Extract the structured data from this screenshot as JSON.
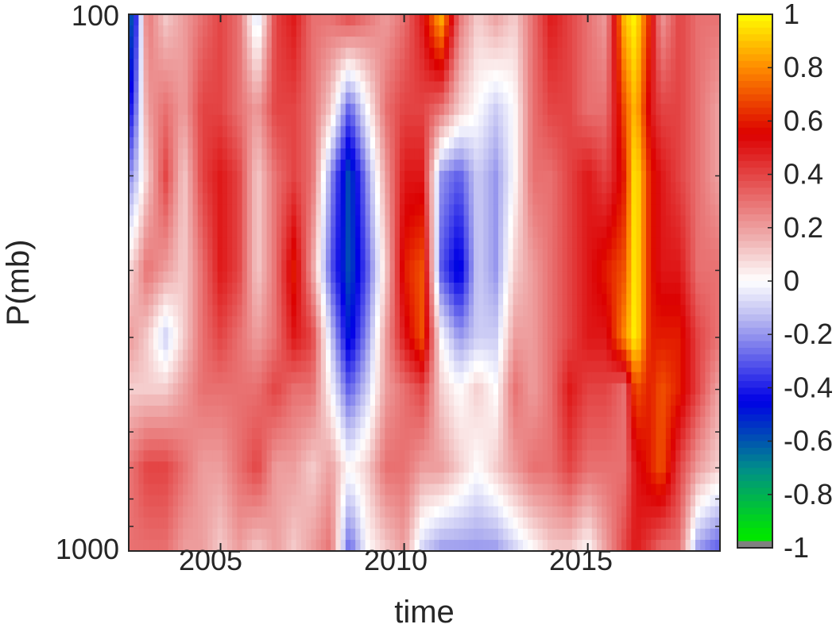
{
  "chart_data": {
    "type": "heatmap",
    "title": "",
    "xlabel": "time",
    "ylabel": "P(mb)",
    "x_range": [
      2002.5,
      2018.6
    ],
    "y_range": [
      100,
      1000
    ],
    "y_scale": "log",
    "y_direction": "reverse",
    "x_ticks": [
      2005,
      2010,
      2015
    ],
    "x_tick_labels": [
      "2005",
      "2010",
      "2015"
    ],
    "y_ticks": [
      100,
      1000
    ],
    "y_tick_labels": [
      "100",
      "1000"
    ],
    "grid": false,
    "colorbar": {
      "range": [
        -1,
        1
      ],
      "ticks": [
        1,
        0.8,
        0.6,
        0.4,
        0.2,
        0,
        -0.2,
        -0.4,
        -0.6,
        -0.8,
        -1
      ],
      "tick_labels": [
        "1",
        "0.8",
        "0.6",
        "0.4",
        "0.2",
        "0",
        "-0.2",
        "-0.4",
        "-0.6",
        "-0.8",
        "-1"
      ],
      "colors": [
        "#808080",
        "#00e600",
        "#008c8c",
        "#0000e6",
        "#b4b4f0",
        "#ffffff",
        "#f0b4b4",
        "#dc0000",
        "#ff8c00",
        "#ffff00"
      ]
    },
    "columns": [
      {
        "x": 2002.6,
        "values": [
          -0.6,
          -0.4,
          -0.2,
          0.1,
          0.2,
          0.1,
          0.3,
          0.3
        ]
      },
      {
        "x": 2003.0,
        "values": [
          0.3,
          0.2,
          0.1,
          0.3,
          0.1,
          0.1,
          0.4,
          0.3
        ]
      },
      {
        "x": 2003.5,
        "values": [
          0.1,
          0.3,
          0.4,
          0.2,
          -0.1,
          0.1,
          0.4,
          0.3
        ]
      },
      {
        "x": 2004.0,
        "values": [
          0.2,
          0.2,
          0.1,
          0.1,
          0.1,
          0.2,
          0.3,
          0.2
        ]
      },
      {
        "x": 2004.5,
        "values": [
          0.3,
          0.4,
          0.4,
          0.3,
          0.3,
          0.3,
          0.2,
          0.2
        ]
      },
      {
        "x": 2005.0,
        "values": [
          0.4,
          0.4,
          0.5,
          0.5,
          0.4,
          0.3,
          0.2,
          0.1
        ]
      },
      {
        "x": 2005.5,
        "values": [
          0.3,
          0.3,
          0.4,
          0.4,
          0.3,
          0.3,
          0.3,
          0.2
        ]
      },
      {
        "x": 2006.0,
        "values": [
          -0.1,
          0.2,
          0.1,
          0.1,
          0.2,
          0.3,
          0.4,
          0.1
        ]
      },
      {
        "x": 2006.5,
        "values": [
          0.4,
          0.4,
          0.3,
          0.3,
          0.3,
          0.4,
          0.2,
          0.2
        ]
      },
      {
        "x": 2007.0,
        "values": [
          0.5,
          0.4,
          0.4,
          0.6,
          0.5,
          0.3,
          0.2,
          0.1
        ]
      },
      {
        "x": 2007.5,
        "values": [
          0.3,
          0.3,
          0.3,
          0.2,
          0.4,
          0.3,
          0.1,
          0.2
        ]
      },
      {
        "x": 2008.0,
        "values": [
          0.3,
          0.1,
          -0.2,
          -0.3,
          -0.1,
          0.0,
          0.2,
          0.3
        ]
      },
      {
        "x": 2008.5,
        "values": [
          0.4,
          -0.3,
          -0.6,
          -0.6,
          -0.5,
          -0.3,
          0.0,
          -0.3
        ]
      },
      {
        "x": 2009.0,
        "values": [
          0.3,
          0.0,
          -0.2,
          -0.3,
          -0.2,
          -0.1,
          0.1,
          0.0
        ]
      },
      {
        "x": 2009.5,
        "values": [
          0.2,
          0.3,
          0.2,
          0.1,
          0.2,
          0.2,
          0.3,
          0.1
        ]
      },
      {
        "x": 2010.0,
        "values": [
          0.3,
          0.4,
          0.5,
          0.6,
          0.5,
          0.3,
          0.3,
          0.2
        ]
      },
      {
        "x": 2010.5,
        "values": [
          0.5,
          0.4,
          0.5,
          0.7,
          0.7,
          0.4,
          0.2,
          -0.1
        ]
      },
      {
        "x": 2011.0,
        "values": [
          0.9,
          0.3,
          -0.2,
          -0.3,
          0.0,
          0.1,
          0.2,
          -0.2
        ]
      },
      {
        "x": 2011.5,
        "values": [
          0.3,
          0.1,
          -0.3,
          -0.5,
          -0.2,
          0.0,
          0.1,
          -0.2
        ]
      },
      {
        "x": 2012.0,
        "values": [
          0.1,
          0.0,
          -0.1,
          -0.1,
          -0.1,
          0.1,
          0.0,
          -0.2
        ]
      },
      {
        "x": 2012.5,
        "values": [
          0.2,
          -0.1,
          -0.2,
          -0.2,
          -0.1,
          0.0,
          0.1,
          -0.2
        ]
      },
      {
        "x": 2013.0,
        "values": [
          0.1,
          0.0,
          0.0,
          0.1,
          0.2,
          0.3,
          0.2,
          -0.1
        ]
      },
      {
        "x": 2013.5,
        "values": [
          0.3,
          0.3,
          0.3,
          0.2,
          0.2,
          0.2,
          0.3,
          0.0
        ]
      },
      {
        "x": 2014.0,
        "values": [
          0.5,
          0.4,
          0.3,
          0.3,
          0.3,
          0.3,
          0.3,
          0.1
        ]
      },
      {
        "x": 2014.5,
        "values": [
          0.4,
          0.4,
          0.4,
          0.4,
          0.4,
          0.5,
          0.4,
          0.1
        ]
      },
      {
        "x": 2015.0,
        "values": [
          0.3,
          0.3,
          0.5,
          0.5,
          0.5,
          0.4,
          0.3,
          0.0
        ]
      },
      {
        "x": 2015.5,
        "values": [
          0.2,
          0.3,
          0.4,
          0.6,
          0.5,
          0.4,
          0.3,
          0.2
        ]
      },
      {
        "x": 2016.0,
        "values": [
          0.9,
          0.7,
          0.6,
          0.7,
          0.8,
          0.3,
          0.3,
          0.4
        ]
      },
      {
        "x": 2016.3,
        "values": [
          1.0,
          0.9,
          1.0,
          1.0,
          1.0,
          0.7,
          0.5,
          0.5
        ]
      },
      {
        "x": 2016.7,
        "values": [
          0.6,
          0.5,
          0.6,
          0.6,
          0.6,
          0.6,
          0.6,
          0.4
        ]
      },
      {
        "x": 2017.0,
        "values": [
          0.2,
          0.4,
          0.5,
          0.5,
          0.6,
          0.7,
          0.7,
          0.3
        ]
      },
      {
        "x": 2017.5,
        "values": [
          0.4,
          0.4,
          0.4,
          0.5,
          0.6,
          0.6,
          0.4,
          0.3
        ]
      },
      {
        "x": 2018.0,
        "values": [
          0.3,
          0.3,
          0.3,
          0.3,
          0.4,
          0.4,
          0.2,
          -0.2
        ]
      },
      {
        "x": 2018.5,
        "values": [
          0.3,
          0.2,
          0.2,
          0.3,
          0.3,
          0.2,
          0.1,
          -0.3
        ]
      }
    ],
    "pressure_levels": [
      100,
      150,
      200,
      300,
      400,
      500,
      700,
      1000
    ]
  }
}
